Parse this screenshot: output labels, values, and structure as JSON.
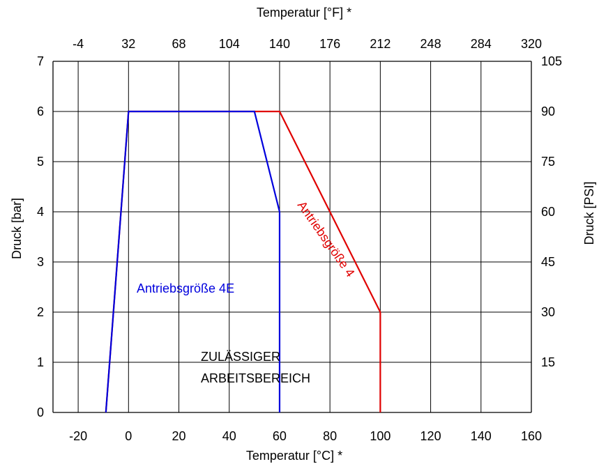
{
  "chart_data": {
    "type": "line",
    "x_label_bottom": "Temperatur [°C] *",
    "x_label_top": "Temperatur [°F] *",
    "y_label_left": "Druck [bar]",
    "y_label_right": "Druck [PSI]",
    "xlim": [
      -30,
      160
    ],
    "ylim": [
      0,
      7
    ],
    "x_ticks_bottom": [
      "-20",
      "0",
      "20",
      "40",
      "60",
      "80",
      "100",
      "120",
      "140",
      "160"
    ],
    "x_ticks_top": [
      "-4",
      "32",
      "68",
      "104",
      "140",
      "176",
      "212",
      "248",
      "284",
      "320"
    ],
    "y_ticks_left": [
      "0",
      "1",
      "2",
      "3",
      "4",
      "5",
      "6",
      "7"
    ],
    "y_ticks_right": [
      "15",
      "30",
      "45",
      "60",
      "75",
      "90",
      "105"
    ],
    "grid": true,
    "series": [
      {
        "name": "Antriebsgröße 4",
        "color": "#e00000",
        "x": [
          -9,
          0,
          60,
          100,
          100
        ],
        "y": [
          0,
          6,
          6,
          2,
          0
        ]
      },
      {
        "name": "Antriebsgröße 4E",
        "color": "#0000dd",
        "x": [
          -9,
          0,
          50,
          60,
          60
        ],
        "y": [
          0,
          6,
          6,
          4,
          0
        ]
      }
    ],
    "annotations": {
      "red_label": "Antriebsgröße 4",
      "blue_label": "Antriebsgröße 4E",
      "region_line1": "ZULÄSSIGER",
      "region_line2": "ARBEITSBEREICH"
    }
  }
}
